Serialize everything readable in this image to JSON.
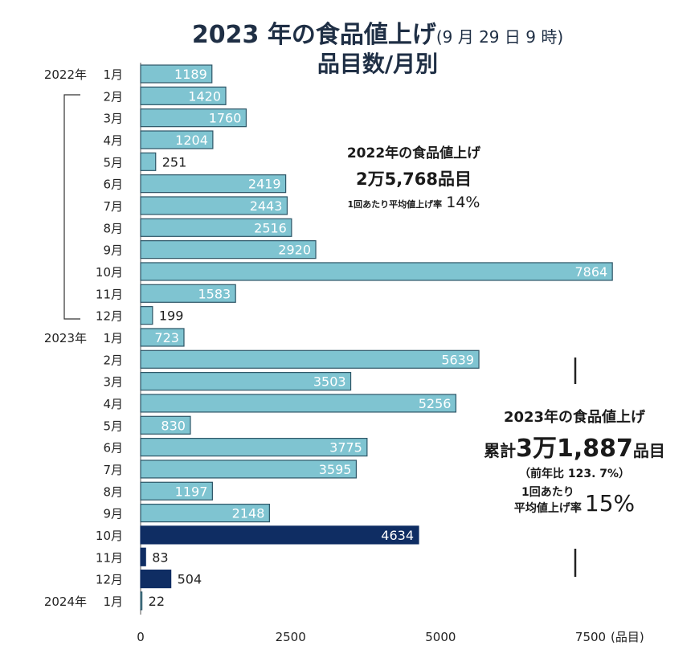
{
  "chart_data": {
    "type": "bar",
    "orientation": "horizontal",
    "title": "2023 年の食品値上げ",
    "title_note": "(9 月 29 日 9 時)",
    "subtitle": "品目数/月別",
    "x_unit": "(品目)",
    "xlim": [
      0,
      7500
    ],
    "xticks": [
      "0",
      "2500",
      "5000",
      "7500"
    ],
    "grid": false,
    "categories": [
      {
        "year": "2022年",
        "month": "1月"
      },
      {
        "year": "",
        "month": "2月"
      },
      {
        "year": "",
        "month": "3月"
      },
      {
        "year": "",
        "month": "4月"
      },
      {
        "year": "",
        "month": "5月"
      },
      {
        "year": "",
        "month": "6月"
      },
      {
        "year": "",
        "month": "7月"
      },
      {
        "year": "",
        "month": "8月"
      },
      {
        "year": "",
        "month": "9月"
      },
      {
        "year": "",
        "month": "10月"
      },
      {
        "year": "",
        "month": "11月"
      },
      {
        "year": "",
        "month": "12月"
      },
      {
        "year": "2023年",
        "month": "1月"
      },
      {
        "year": "",
        "month": "2月"
      },
      {
        "year": "",
        "month": "3月"
      },
      {
        "year": "",
        "month": "4月"
      },
      {
        "year": "",
        "month": "5月"
      },
      {
        "year": "",
        "month": "6月"
      },
      {
        "year": "",
        "month": "7月"
      },
      {
        "year": "",
        "month": "8月"
      },
      {
        "year": "",
        "month": "9月"
      },
      {
        "year": "",
        "month": "10月"
      },
      {
        "year": "",
        "month": "11月"
      },
      {
        "year": "",
        "month": "12月"
      },
      {
        "year": "2024年",
        "month": "1月"
      }
    ],
    "values": [
      1189,
      1420,
      1760,
      1204,
      251,
      2419,
      2443,
      2516,
      2920,
      7864,
      1583,
      199,
      723,
      5639,
      3503,
      5256,
      830,
      3775,
      3595,
      1197,
      2148,
      4634,
      83,
      504,
      22
    ],
    "highlighted": [
      21,
      22,
      23
    ],
    "colors": {
      "bar": "#7fc4d1",
      "bar_outline": "#2d5566",
      "highlight": "#0f2d63",
      "title": "#1f2f45"
    }
  },
  "annotation_2022": {
    "heading": "2022年の食品値上げ",
    "total": "2万5,768品目",
    "rate_label": "1回あたり平均値上げ率",
    "rate": "14%"
  },
  "annotation_2023": {
    "heading": "2023年の食品値上げ",
    "total_prefix": "累計",
    "total": "3万1,887",
    "total_suffix": "品目",
    "yoy": "（前年比 123. 7%）",
    "rate_label_1": "1回あたり",
    "rate_label_2": "平均値上げ率",
    "rate": "15%"
  }
}
